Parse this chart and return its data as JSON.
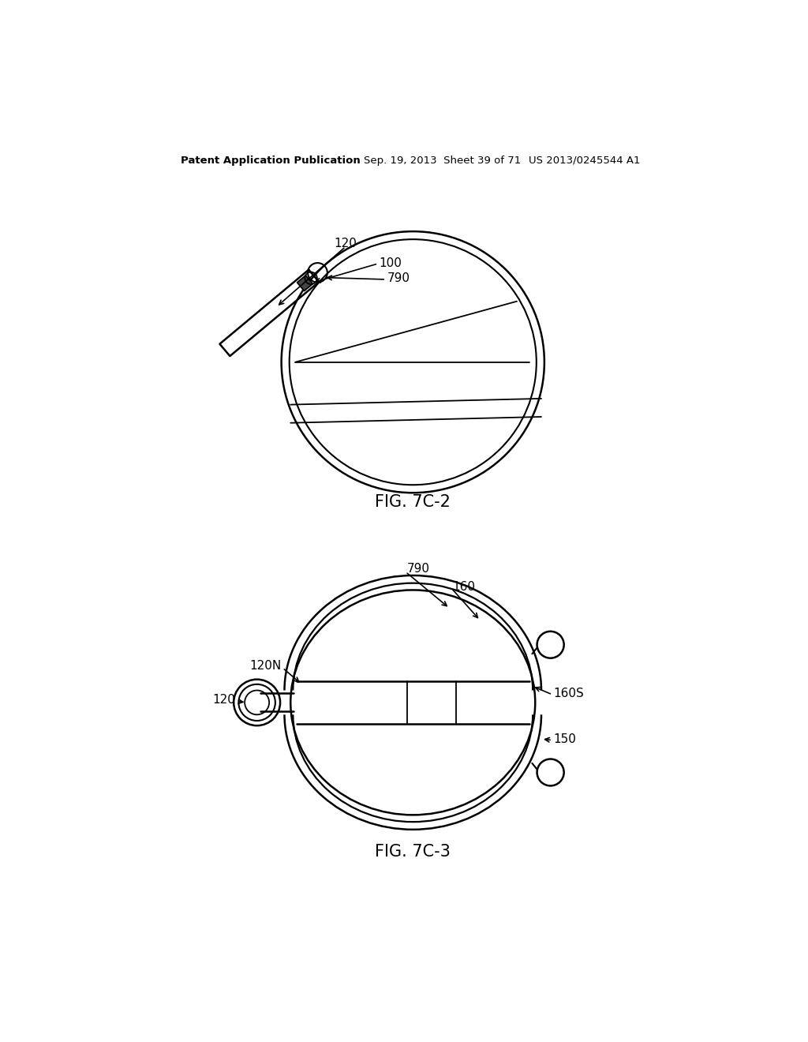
{
  "bg_color": "#ffffff",
  "line_color": "#000000",
  "header_left": "Patent Application Publication",
  "header_mid": "Sep. 19, 2013  Sheet 39 of 71",
  "header_right": "US 2013/0245544 A1",
  "fig7c2_label": "FIG. 7C-2",
  "fig7c3_label": "FIG. 7C-3",
  "labels": {
    "120_top": "120",
    "100": "100",
    "790_top": "790",
    "790_bot": "790",
    "160": "160",
    "120N": "120N",
    "120_bot": "120",
    "160S": "160S",
    "150": "150"
  }
}
